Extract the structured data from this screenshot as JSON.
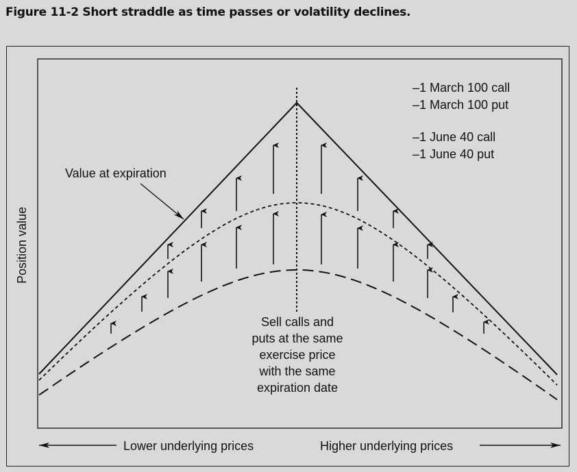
{
  "figure": {
    "title": "Figure 11-2  Short straddle as time passes or volatility declines."
  },
  "chart_data": {
    "type": "line",
    "ylabel": "Position value",
    "xlabel_left": "Lower underlying prices",
    "xlabel_right": "Higher underlying prices",
    "legend": [
      "–1 March 100 call",
      "–1 March 100 put",
      "–1 June 40 call",
      "–1 June 40 put"
    ],
    "annotation_expiration": "Value at expiration",
    "annotation_center": [
      "Sell calls and",
      "puts at the same",
      "exercise price",
      "with the same",
      "expiration date"
    ],
    "series": [
      {
        "name": "Value at expiration",
        "style": "solid"
      },
      {
        "style": "dotted"
      },
      {
        "style": "dashed"
      }
    ]
  }
}
